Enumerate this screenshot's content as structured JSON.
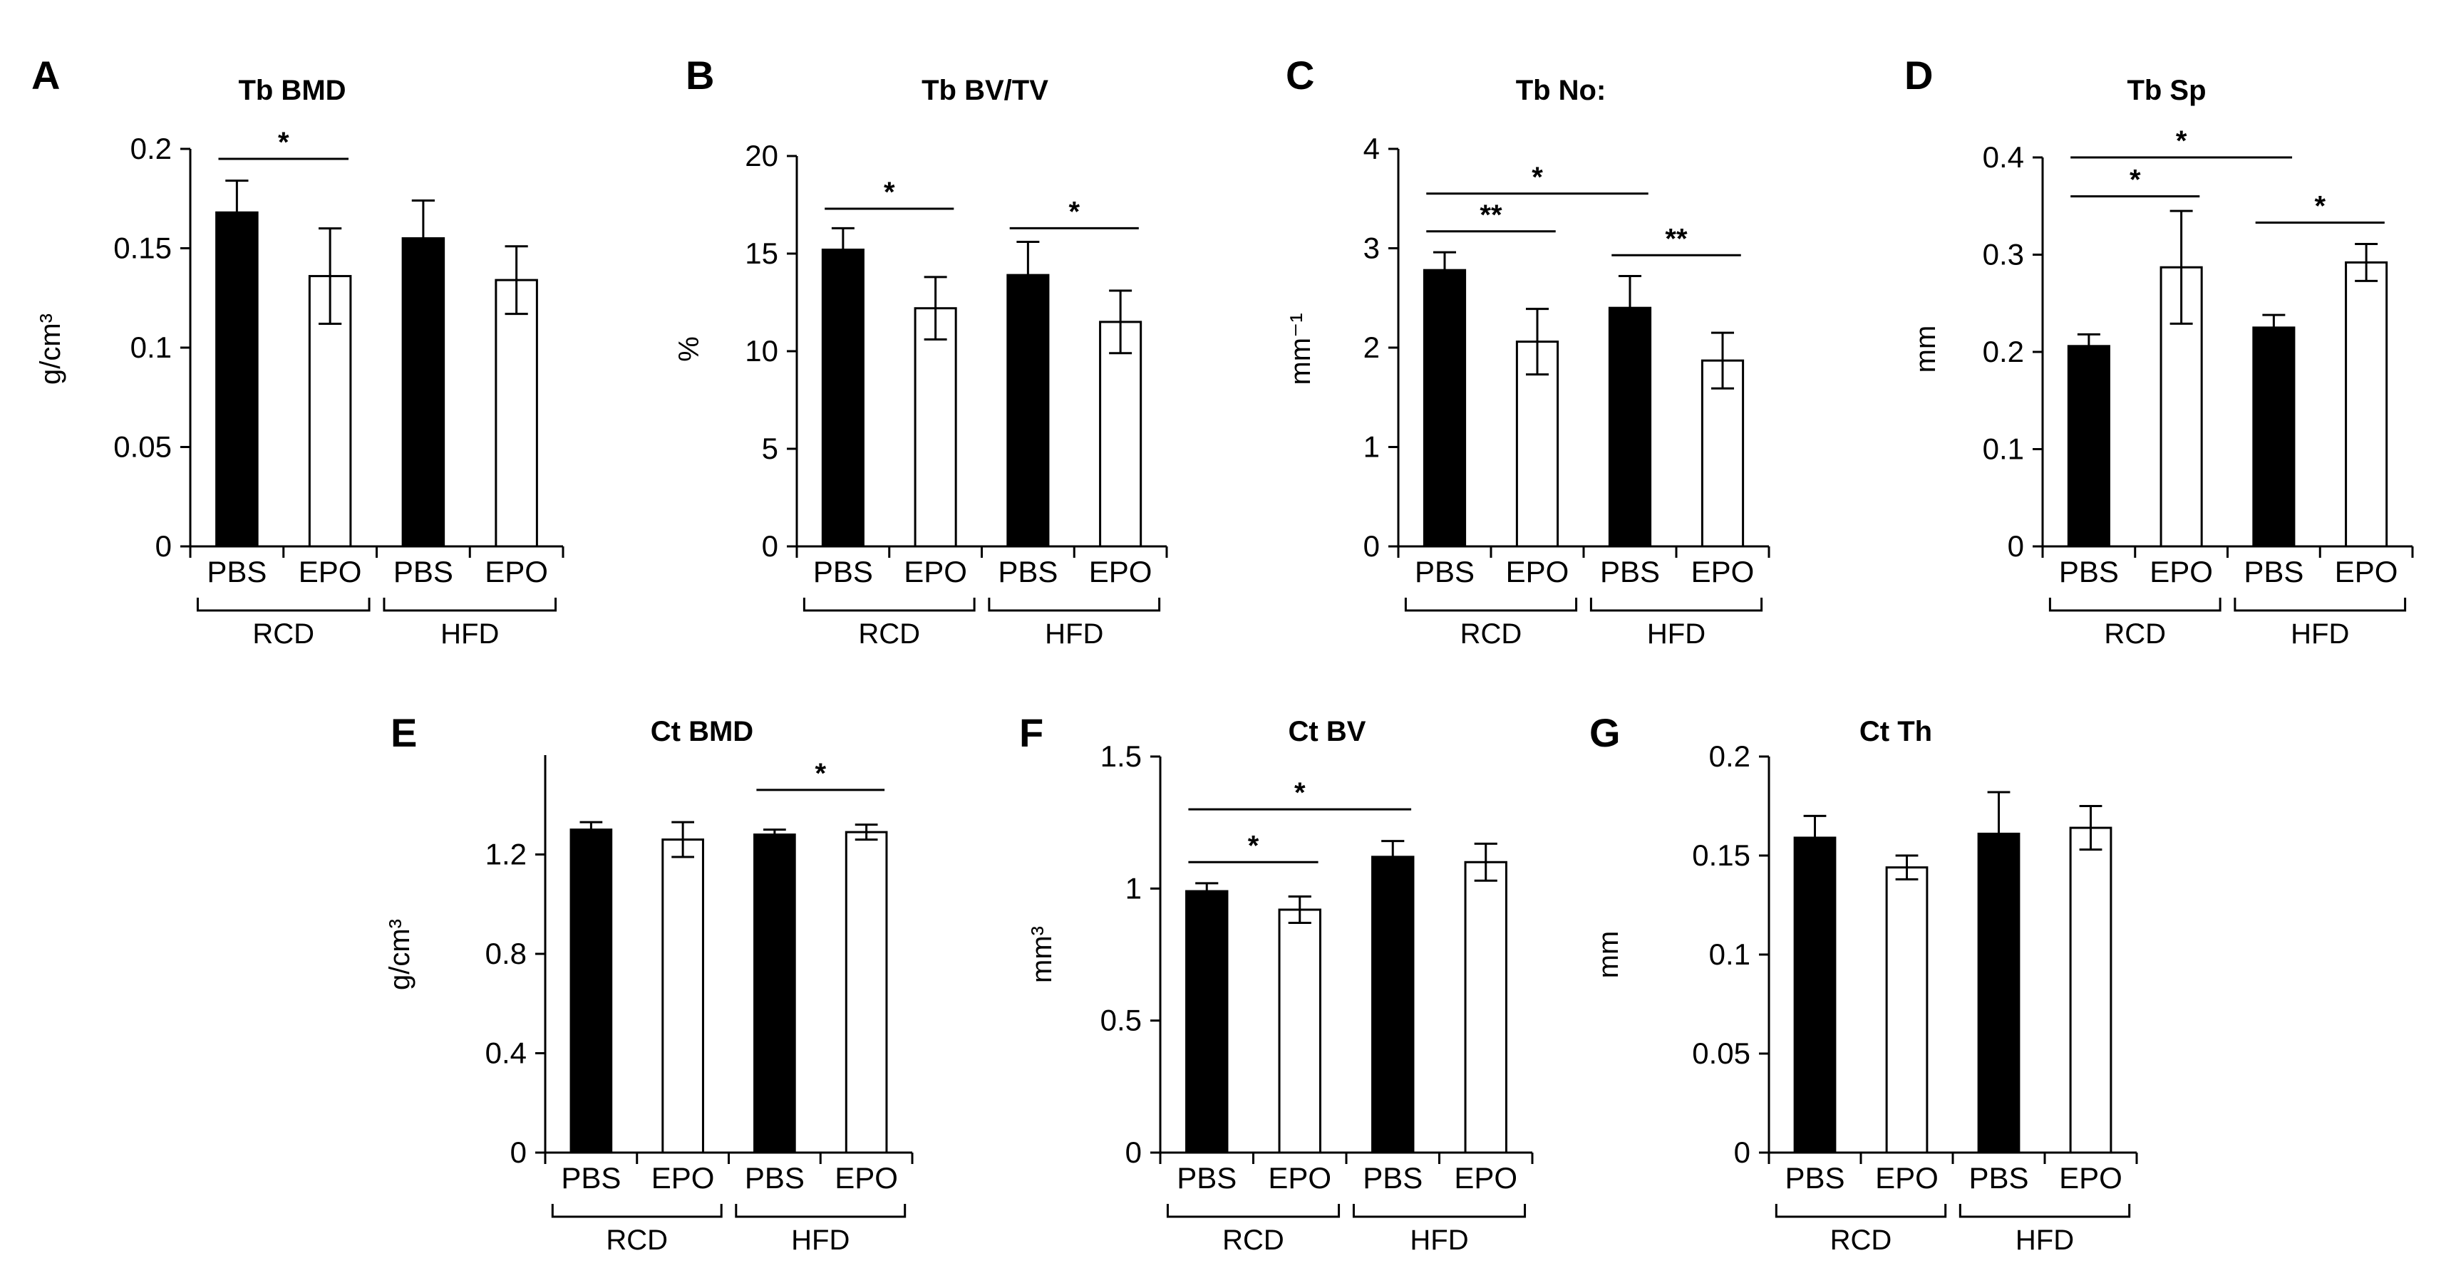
{
  "figure": {
    "colors": {
      "pbs": "#000000",
      "epo": "#ffffff",
      "axis": "#000000"
    }
  },
  "chart_data": [
    {
      "id": "A",
      "type": "bar",
      "title": "Tb BMD",
      "ylabel": "g/cm³",
      "ylim": [
        0,
        0.2
      ],
      "yticks": [
        0,
        0.05,
        0.1,
        0.15,
        0.2
      ],
      "ytick_labels": [
        "0",
        "0.05",
        "0.1",
        "0.15",
        "0.2"
      ],
      "categories": [
        "PBS",
        "EPO",
        "PBS",
        "EPO"
      ],
      "groups": [
        "RCD",
        "HFD"
      ],
      "values": [
        0.168,
        0.136,
        0.155,
        0.134
      ],
      "errors": [
        0.016,
        0.024,
        0.019,
        0.017
      ],
      "significance": [
        {
          "from": 0,
          "to": 1,
          "y": 0.195,
          "label": "*"
        }
      ]
    },
    {
      "id": "B",
      "type": "bar",
      "title": "Tb BV/TV",
      "ylabel": "%",
      "ylim": [
        0,
        20
      ],
      "yticks": [
        0,
        5,
        10,
        15,
        20
      ],
      "ytick_labels": [
        "0",
        "5",
        "10",
        "15",
        "20"
      ],
      "categories": [
        "PBS",
        "EPO",
        "PBS",
        "EPO"
      ],
      "groups": [
        "RCD",
        "HFD"
      ],
      "values": [
        15.2,
        12.2,
        13.9,
        11.5
      ],
      "errors": [
        1.1,
        1.6,
        1.7,
        1.6
      ],
      "significance": [
        {
          "from": 0,
          "to": 1,
          "y": 17.3,
          "label": "*"
        },
        {
          "from": 2,
          "to": 3,
          "y": 16.3,
          "label": "*"
        }
      ]
    },
    {
      "id": "C",
      "type": "bar",
      "title": "Tb No:",
      "ylabel": "mm⁻¹",
      "ylim": [
        0,
        4
      ],
      "yticks": [
        0,
        1,
        2,
        3,
        4
      ],
      "ytick_labels": [
        "0",
        "1",
        "2",
        "3",
        "4"
      ],
      "categories": [
        "PBS",
        "EPO",
        "PBS",
        "EPO"
      ],
      "groups": [
        "RCD",
        "HFD"
      ],
      "values": [
        2.78,
        2.06,
        2.4,
        1.87
      ],
      "errors": [
        0.18,
        0.33,
        0.32,
        0.28
      ],
      "significance": [
        {
          "from": 0,
          "to": 2,
          "y": 3.55,
          "label": "*"
        },
        {
          "from": 0,
          "to": 1,
          "y": 3.17,
          "label": "**"
        },
        {
          "from": 2,
          "to": 3,
          "y": 2.93,
          "label": "**"
        }
      ]
    },
    {
      "id": "D",
      "type": "bar",
      "title": "Tb Sp",
      "ylabel": "mm",
      "ylim": [
        0,
        0.4
      ],
      "yticks": [
        0,
        0.1,
        0.2,
        0.3,
        0.4
      ],
      "ytick_labels": [
        "0",
        "0.1",
        "0.2",
        "0.3",
        "0.4"
      ],
      "categories": [
        "PBS",
        "EPO",
        "PBS",
        "EPO"
      ],
      "groups": [
        "RCD",
        "HFD"
      ],
      "values": [
        0.206,
        0.287,
        0.225,
        0.292
      ],
      "errors": [
        0.012,
        0.058,
        0.013,
        0.019
      ],
      "significance": [
        {
          "from": 0,
          "to": 2,
          "y": 0.4,
          "label": "*"
        },
        {
          "from": 0,
          "to": 1,
          "y": 0.36,
          "label": "*"
        },
        {
          "from": 2,
          "to": 3,
          "y": 0.333,
          "label": "*"
        }
      ]
    },
    {
      "id": "E",
      "type": "bar",
      "title": "Ct BMD",
      "ylabel": "g/cm³",
      "ylim": [
        0,
        1.6
      ],
      "yticks": [
        0,
        0.4,
        0.8,
        1.2
      ],
      "ytick_labels": [
        "0",
        "0.4",
        "0.8",
        "1.2"
      ],
      "categories": [
        "PBS",
        "EPO",
        "PBS",
        "EPO"
      ],
      "groups": [
        "RCD",
        "HFD"
      ],
      "values": [
        1.3,
        1.26,
        1.28,
        1.29
      ],
      "errors": [
        0.03,
        0.07,
        0.02,
        0.03
      ],
      "significance": [
        {
          "from": 2,
          "to": 3,
          "y": 1.46,
          "label": "*"
        }
      ]
    },
    {
      "id": "F",
      "type": "bar",
      "title": "Ct BV",
      "ylabel": "mm³",
      "ylim": [
        0,
        1.5
      ],
      "yticks": [
        0,
        0.5,
        1,
        1.5
      ],
      "ytick_labels": [
        "0",
        "0.5",
        "1",
        "1.5"
      ],
      "categories": [
        "PBS",
        "EPO",
        "PBS",
        "EPO"
      ],
      "groups": [
        "RCD",
        "HFD"
      ],
      "values": [
        0.99,
        0.92,
        1.12,
        1.1
      ],
      "errors": [
        0.03,
        0.05,
        0.06,
        0.07
      ],
      "significance": [
        {
          "from": 0,
          "to": 2,
          "y": 1.3,
          "label": "*"
        },
        {
          "from": 0,
          "to": 1,
          "y": 1.1,
          "label": "*"
        }
      ]
    },
    {
      "id": "G",
      "type": "bar",
      "title": "Ct Th",
      "ylabel": "mm",
      "ylim": [
        0,
        0.2
      ],
      "yticks": [
        0,
        0.05,
        0.1,
        0.15,
        0.2
      ],
      "ytick_labels": [
        "0",
        "0.05",
        "0.1",
        "0.15",
        "0.2"
      ],
      "categories": [
        "PBS",
        "EPO",
        "PBS",
        "EPO"
      ],
      "groups": [
        "RCD",
        "HFD"
      ],
      "values": [
        0.159,
        0.144,
        0.161,
        0.164
      ],
      "errors": [
        0.011,
        0.006,
        0.021,
        0.011
      ],
      "significance": []
    }
  ]
}
